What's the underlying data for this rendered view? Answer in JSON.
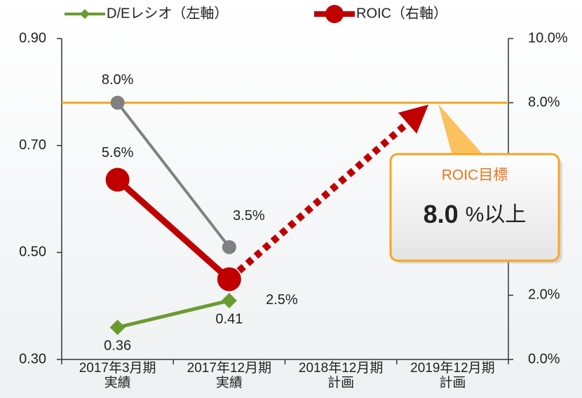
{
  "chart_data": {
    "type": "line",
    "categories": [
      "2017年3月期\n実績",
      "2017年12月期\n実績",
      "2018年12月期\n計画",
      "2019年12月期\n計画"
    ],
    "series": [
      {
        "name": "D/Eレシオ（左軸）",
        "color": "#6b9b2f",
        "marker": "diamond",
        "values": [
          0.36,
          0.41,
          null,
          null
        ],
        "value_labels": [
          "0.36",
          "0.41",
          null,
          null
        ]
      },
      {
        "name": "ROIC（右軸）",
        "color": "#c00000",
        "marker": "circle",
        "axis": "y2",
        "values": [
          5.6,
          2.5,
          null,
          null
        ],
        "value_labels": [
          "5.6%",
          "2.5%",
          null,
          null
        ]
      },
      {
        "color": "#808080",
        "marker": "circle",
        "axis": "y2",
        "values": [
          8.0,
          3.5,
          null,
          null
        ],
        "value_labels": [
          "8.0%",
          "3.5%",
          null,
          null
        ]
      }
    ],
    "ylim": [
      0.3,
      0.9
    ],
    "yticks": [
      {
        "value": 0.3,
        "label": "0.30"
      },
      {
        "value": 0.5,
        "label": "0.50"
      },
      {
        "value": 0.7,
        "label": "0.70"
      },
      {
        "value": 0.9,
        "label": "0.90"
      }
    ],
    "y2lim": [
      0,
      10
    ],
    "y2ticks": [
      {
        "value": 0,
        "label": "0.0%"
      },
      {
        "value": 2,
        "label": "2.0%"
      },
      {
        "value": 4,
        "label": "4.0%"
      },
      {
        "value": 6,
        "label": "6.0%"
      },
      {
        "value": 8,
        "label": "8.0%"
      },
      {
        "value": 10,
        "label": "10.0%"
      }
    ],
    "target": {
      "value": 8.0,
      "color": "#f5a623",
      "title": "ROIC目標",
      "value_label": "8.0",
      "suffix": "%以上"
    },
    "legend": "top"
  }
}
